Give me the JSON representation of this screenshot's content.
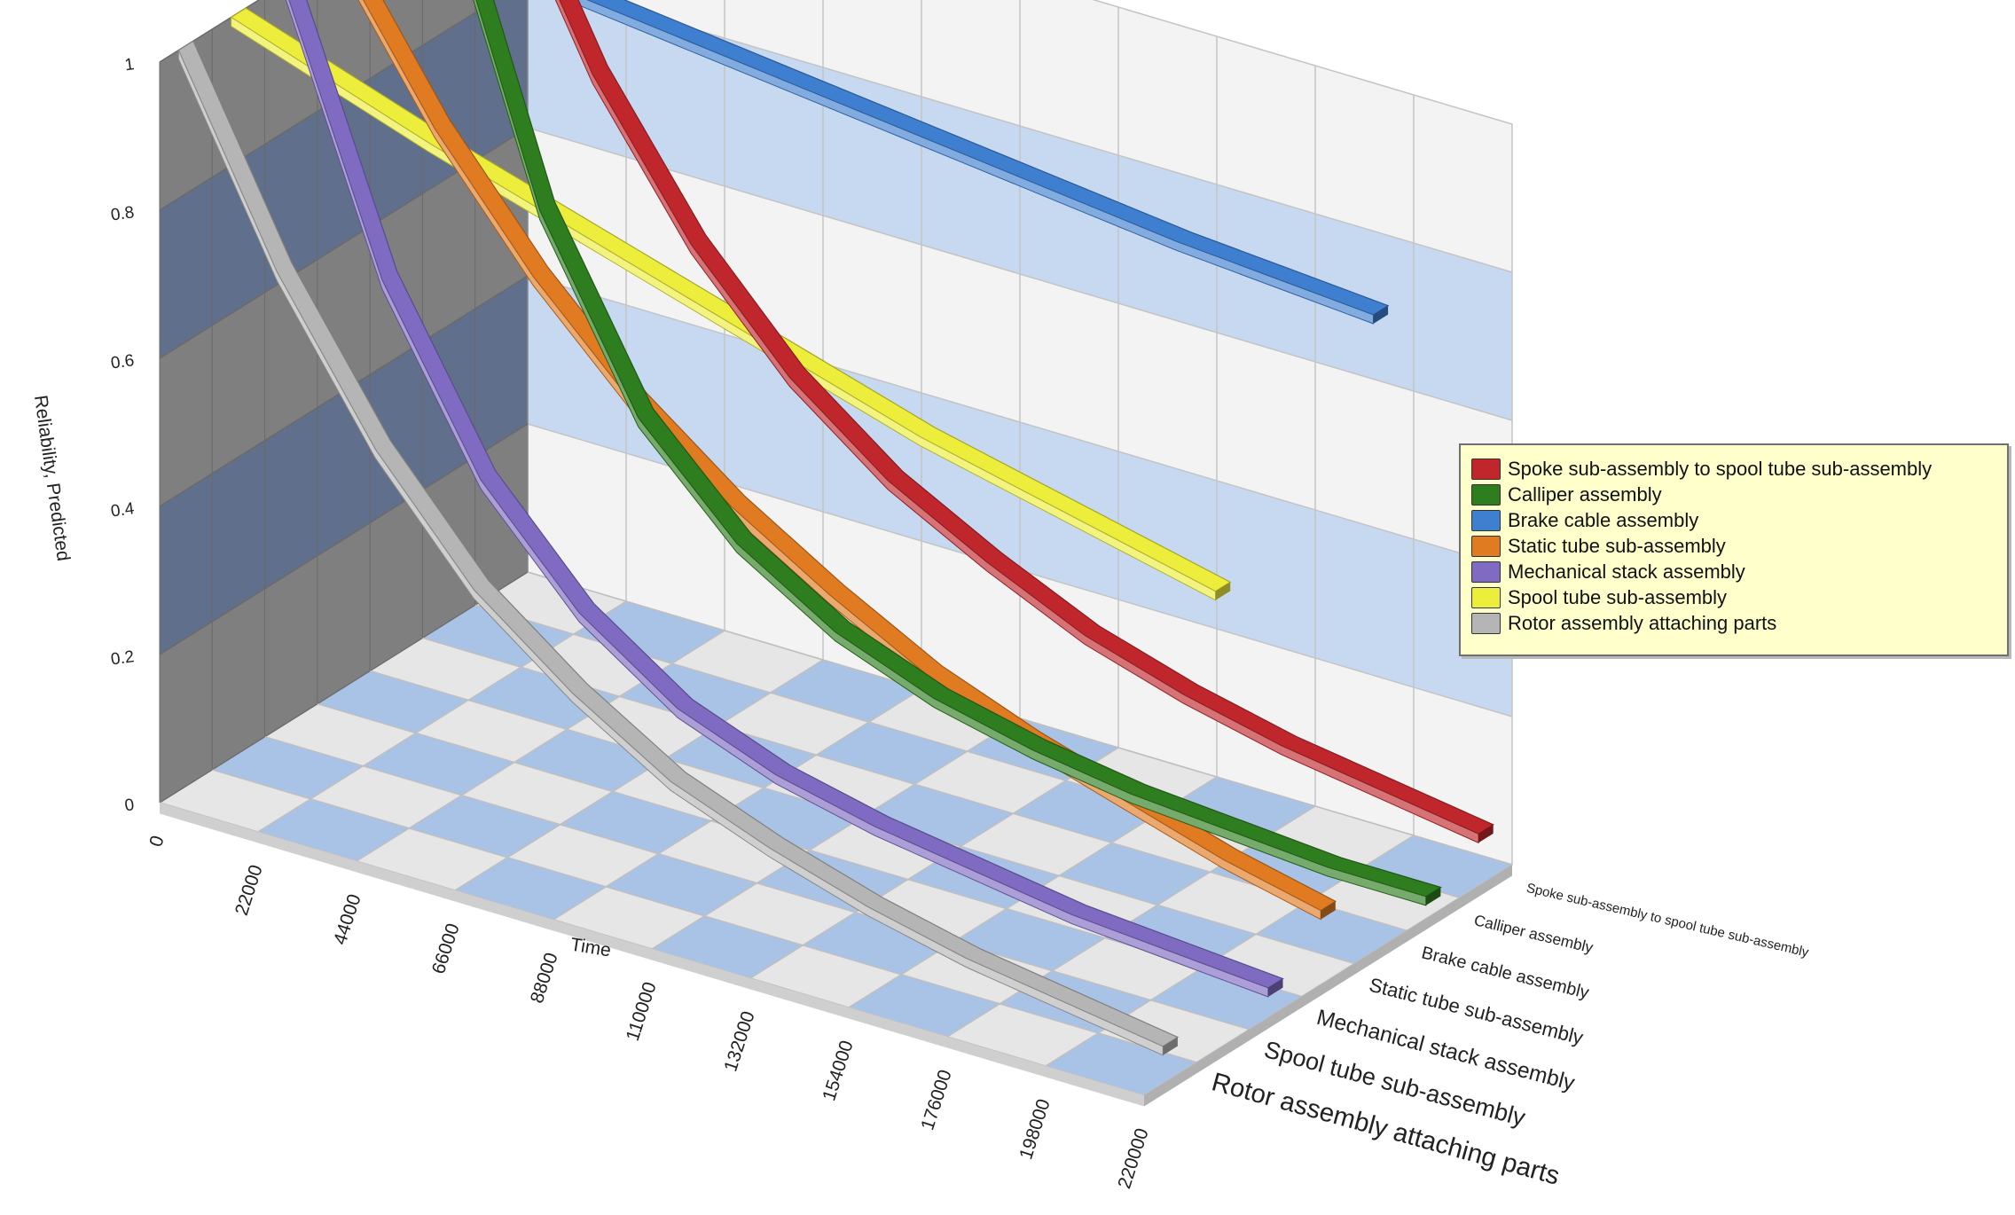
{
  "chart_data": {
    "type": "line",
    "title": "",
    "xlabel": "Time",
    "ylabel": "Reliability, Predicted",
    "x": [
      0,
      22000,
      44000,
      66000,
      88000,
      110000,
      132000,
      154000,
      176000,
      198000,
      220000
    ],
    "x_tick_labels": [
      "0",
      "22000",
      "44000",
      "66000",
      "88000",
      "110000",
      "132000",
      "154000",
      "176000",
      "198000",
      "220000"
    ],
    "y_tick_labels": [
      "0",
      "0.2",
      "0.4",
      "0.6",
      "0.8",
      "1"
    ],
    "ylim": [
      0,
      1
    ],
    "xlim": [
      0,
      220000
    ],
    "depth_axis_labels": [
      "Spoke sub-assembly to spool tube sub-assembly",
      "Calliper assembly",
      "Brake cable assembly",
      "Static tube sub-assembly",
      "Mechanical stack assembly",
      "Spool tube sub-assembly",
      "Rotor assembly attaching parts"
    ],
    "grid": true,
    "legend_position": "right",
    "series": [
      {
        "name": "Spoke sub-assembly to spool tube sub-assembly",
        "color": "#c0272d",
        "values": [
          1.0,
          0.74,
          0.55,
          0.41,
          0.31,
          0.24,
          0.18,
          0.14,
          0.11,
          0.09,
          0.07
        ]
      },
      {
        "name": "Calliper assembly",
        "color": "#2e7d1f",
        "values": [
          1.0,
          0.6,
          0.36,
          0.23,
          0.15,
          0.1,
          0.07,
          0.05,
          0.04,
          0.03,
          0.03
        ]
      },
      {
        "name": "Brake cable assembly",
        "color": "#3f7fd0",
        "values": [
          1.0,
          0.985,
          0.97,
          0.955,
          0.94,
          0.925,
          0.91,
          0.895,
          0.88,
          0.87,
          0.86
        ]
      },
      {
        "name": "Static tube sub-assembly",
        "color": "#e07b22",
        "values": [
          1.0,
          0.8,
          0.64,
          0.51,
          0.41,
          0.33,
          0.26,
          0.21,
          0.17,
          0.13,
          0.1
        ]
      },
      {
        "name": "Mechanical stack assembly",
        "color": "#7f6bc2",
        "values": [
          1.0,
          0.64,
          0.41,
          0.27,
          0.18,
          0.13,
          0.1,
          0.08,
          0.06,
          0.05,
          0.04
        ]
      },
      {
        "name": "Spool tube sub-assembly",
        "color": "#eded3c",
        "values": [
          1.0,
          0.955,
          0.91,
          0.87,
          0.83,
          0.79,
          0.75,
          0.71,
          0.68,
          0.65,
          0.62
        ]
      },
      {
        "name": "Rotor assembly attaching parts",
        "color": "#b5b5b5",
        "values": [
          1.0,
          0.74,
          0.54,
          0.39,
          0.29,
          0.21,
          0.16,
          0.12,
          0.09,
          0.07,
          0.05
        ]
      }
    ]
  }
}
